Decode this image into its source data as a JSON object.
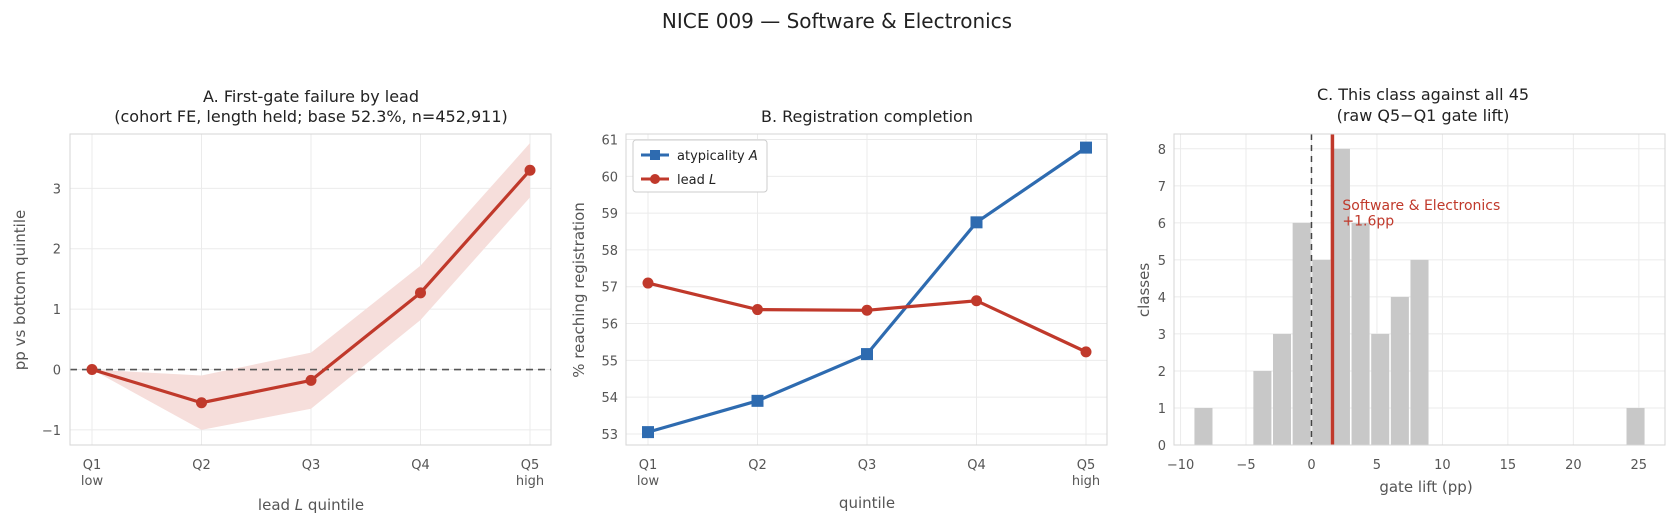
{
  "figure_title": "NICE 009 — Software & Electronics",
  "colors": {
    "red": "#c0392b",
    "blue": "#2e6bb0",
    "band": "#f6dedb",
    "bar": "#c8c8c8",
    "grid": "#ebebeb"
  },
  "chart_data": [
    {
      "panel": "A",
      "type": "line",
      "title_line1": "A. First-gate failure by lead",
      "title_line2": "(cohort FE, length held; base 52.3%, n=452,911)",
      "xlabel": "lead L quintile",
      "ylabel": "pp vs bottom quintile",
      "categories": [
        "Q1",
        "Q2",
        "Q3",
        "Q4",
        "Q5"
      ],
      "category_sublabels": [
        "low",
        "",
        "",
        "",
        "high"
      ],
      "ylim": [
        -1.25,
        3.9
      ],
      "yticks": [
        -1,
        0,
        1,
        2,
        3
      ],
      "ytick_labels": [
        "−1",
        "0",
        "1",
        "2",
        "3"
      ],
      "reference_line": 0,
      "grid": true,
      "series": [
        {
          "values": [
            0.0,
            -0.55,
            -0.18,
            1.27,
            3.3
          ],
          "ci_low": [
            0.0,
            -1.0,
            -0.65,
            0.82,
            2.85
          ],
          "ci_high": [
            0.0,
            -0.1,
            0.28,
            1.72,
            3.75
          ]
        }
      ]
    },
    {
      "panel": "B",
      "type": "line",
      "title": "B. Registration completion",
      "xlabel": "quintile",
      "ylabel": "% reaching registration",
      "categories": [
        "Q1",
        "Q2",
        "Q3",
        "Q4",
        "Q5"
      ],
      "category_sublabels": [
        "low",
        "",
        "",
        "",
        "high"
      ],
      "ylim": [
        52.7,
        61.15
      ],
      "yticks": [
        53,
        54,
        55,
        56,
        57,
        58,
        59,
        60,
        61
      ],
      "grid": true,
      "legend": "top-left",
      "series": [
        {
          "name": "atypicality A",
          "legend_text": "atypicality ",
          "legend_italic": "A",
          "marker": "square",
          "values": [
            53.05,
            53.9,
            55.17,
            58.75,
            60.78
          ]
        },
        {
          "name": "lead L",
          "legend_text": "lead ",
          "legend_italic": "L",
          "marker": "circle",
          "values": [
            57.1,
            56.38,
            56.36,
            56.62,
            55.23
          ]
        }
      ]
    },
    {
      "panel": "C",
      "type": "bar",
      "title_line1": "C. This class against all 45",
      "title_line2": "(raw Q5−Q1 gate lift)",
      "xlabel": "gate lift (pp)",
      "ylabel": "classes",
      "xlim": [
        -10.5,
        27
      ],
      "ylim": [
        0,
        8.4
      ],
      "xticks": [
        -10,
        -5,
        0,
        5,
        10,
        15,
        20,
        25
      ],
      "xtick_labels": [
        "−10",
        "−5",
        "0",
        "5",
        "10",
        "15",
        "20",
        "25"
      ],
      "yticks": [
        0,
        1,
        2,
        3,
        4,
        5,
        6,
        7,
        8
      ],
      "grid": true,
      "bins": [
        {
          "x0": -9.0,
          "x1": -7.5,
          "count": 1
        },
        {
          "x0": -4.5,
          "x1": -3.0,
          "count": 2
        },
        {
          "x0": -3.0,
          "x1": -1.5,
          "count": 3
        },
        {
          "x0": -1.5,
          "x1": 0.0,
          "count": 6
        },
        {
          "x0": 0.0,
          "x1": 1.5,
          "count": 5
        },
        {
          "x0": 1.5,
          "x1": 3.0,
          "count": 8
        },
        {
          "x0": 3.0,
          "x1": 4.5,
          "count": 6
        },
        {
          "x0": 4.5,
          "x1": 6.0,
          "count": 3
        },
        {
          "x0": 6.0,
          "x1": 7.5,
          "count": 4
        },
        {
          "x0": 7.5,
          "x1": 9.0,
          "count": 5
        },
        {
          "x0": 24.0,
          "x1": 25.5,
          "count": 1
        }
      ],
      "zero_line": 0,
      "highlight_value": 1.6,
      "highlight_label_line1": "Software & Electronics",
      "highlight_label_line2": "+1.6pp"
    }
  ]
}
